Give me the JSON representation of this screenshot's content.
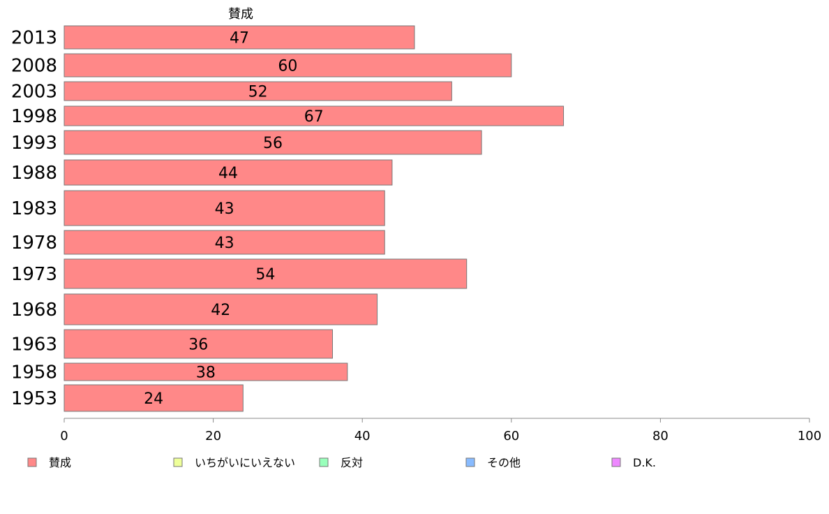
{
  "chart_data": {
    "type": "bar",
    "orientation": "horizontal",
    "categories": [
      "2013",
      "2008",
      "2003",
      "1998",
      "1993",
      "1988",
      "1983",
      "1978",
      "1973",
      "1968",
      "1963",
      "1958",
      "1953"
    ],
    "series": [
      {
        "name": "賛成",
        "color": "#ff8888",
        "values": [
          47,
          60,
          52,
          67,
          56,
          44,
          43,
          43,
          54,
          42,
          36,
          38,
          24
        ]
      }
    ],
    "x_ticks": [
      "0",
      "20",
      "40",
      "60",
      "80",
      "100"
    ],
    "xlim": [
      0,
      100
    ],
    "legend": {
      "position": "bottom",
      "items": [
        {
          "label": "賛成",
          "color": "#ff8888"
        },
        {
          "label": "いちがいにいえない",
          "color": "#eeff99"
        },
        {
          "label": "反対",
          "color": "#99ffbb"
        },
        {
          "label": "その他",
          "color": "#88bbff"
        },
        {
          "label": "D.K.",
          "color": "#ee88ff"
        }
      ]
    },
    "grid": false
  }
}
